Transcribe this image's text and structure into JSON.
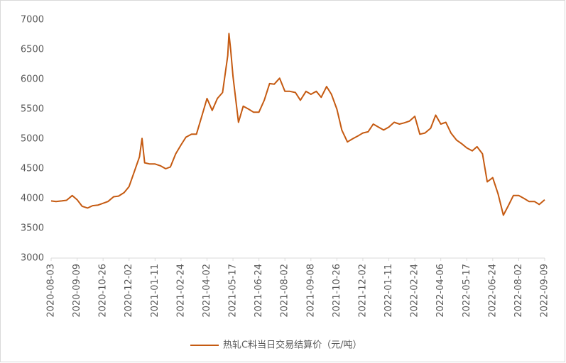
{
  "chart_data": {
    "type": "line",
    "x": [
      "2020-08-03",
      "2020-08-10",
      "2020-08-18",
      "2020-08-25",
      "2020-09-02",
      "2020-09-09",
      "2020-09-18",
      "2020-09-28",
      "2020-10-07",
      "2020-10-17",
      "2020-10-26",
      "2020-11-02",
      "2020-11-10",
      "2020-11-17",
      "2020-11-25",
      "2020-12-02",
      "2020-12-10",
      "2020-12-18",
      "2020-12-22",
      "2020-12-26",
      "2021-01-03",
      "2021-01-11",
      "2021-01-20",
      "2021-01-29",
      "2021-02-06",
      "2021-02-15",
      "2021-02-24",
      "2021-03-03",
      "2021-03-11",
      "2021-03-18",
      "2021-03-26",
      "2021-04-02",
      "2021-04-11",
      "2021-04-20",
      "2021-04-29",
      "2021-05-08",
      "2021-05-10",
      "2021-05-13",
      "2021-05-17",
      "2021-05-25",
      "2021-06-01",
      "2021-06-09",
      "2021-06-16",
      "2021-06-24",
      "2021-07-02",
      "2021-07-10",
      "2021-07-17",
      "2021-07-25",
      "2021-08-02",
      "2021-08-09",
      "2021-08-17",
      "2021-08-24",
      "2021-09-01",
      "2021-09-08",
      "2021-09-18",
      "2021-09-27",
      "2021-10-07",
      "2021-10-16",
      "2021-10-26",
      "2021-11-02",
      "2021-11-10",
      "2021-11-17",
      "2021-11-25",
      "2021-12-02",
      "2021-12-10",
      "2021-12-18",
      "2021-12-26",
      "2022-01-03",
      "2022-01-11",
      "2022-01-20",
      "2022-01-29",
      "2022-02-06",
      "2022-02-15",
      "2022-02-24",
      "2022-03-04",
      "2022-03-12",
      "2022-03-21",
      "2022-03-29",
      "2022-04-06",
      "2022-04-14",
      "2022-04-22",
      "2022-05-01",
      "2022-05-09",
      "2022-05-17",
      "2022-05-25",
      "2022-06-01",
      "2022-06-09",
      "2022-06-16",
      "2022-06-24",
      "2022-07-02",
      "2022-07-10",
      "2022-07-17",
      "2022-07-25",
      "2022-08-02",
      "2022-08-10",
      "2022-08-17",
      "2022-08-25",
      "2022-09-01",
      "2022-09-09"
    ],
    "series": [
      {
        "name": "热轧C料当日交易结算价（元/吨）",
        "color": "#c55a11",
        "values": [
          3960,
          3950,
          3960,
          3970,
          4050,
          3980,
          3870,
          3840,
          3880,
          3890,
          3920,
          3950,
          4030,
          4040,
          4100,
          4200,
          4450,
          4700,
          5010,
          4600,
          4580,
          4580,
          4550,
          4500,
          4530,
          4750,
          4900,
          5030,
          5080,
          5080,
          5400,
          5680,
          5480,
          5680,
          5780,
          6400,
          6770,
          6500,
          6050,
          5280,
          5550,
          5500,
          5450,
          5450,
          5650,
          5930,
          5920,
          6020,
          5800,
          5800,
          5780,
          5650,
          5800,
          5750,
          5800,
          5700,
          5880,
          5750,
          5500,
          5150,
          4950,
          5000,
          5050,
          5100,
          5120,
          5250,
          5200,
          5150,
          5200,
          5280,
          5250,
          5270,
          5300,
          5380,
          5080,
          5100,
          5180,
          5400,
          5250,
          5280,
          5100,
          4980,
          4920,
          4850,
          4800,
          4870,
          4750,
          4280,
          4350,
          4080,
          3720,
          3870,
          4050,
          4050,
          4000,
          3950,
          3950,
          3900,
          3980
        ]
      }
    ],
    "xticks": [
      "2020-08-03",
      "2020-09-09",
      "2020-10-26",
      "2020-12-02",
      "2021-01-11",
      "2021-02-24",
      "2021-04-02",
      "2021-05-17",
      "2021-06-24",
      "2021-08-02",
      "2021-09-08",
      "2021-10-26",
      "2021-12-02",
      "2022-01-11",
      "2022-02-24",
      "2022-04-06",
      "2022-05-17",
      "2022-06-24",
      "2022-08-02",
      "2022-09-09"
    ],
    "ylim": [
      3000,
      7000
    ],
    "yticks": [
      3000,
      3500,
      4000,
      4500,
      5000,
      5500,
      6000,
      6500,
      7000
    ],
    "grid": false,
    "legend": "bottom"
  }
}
